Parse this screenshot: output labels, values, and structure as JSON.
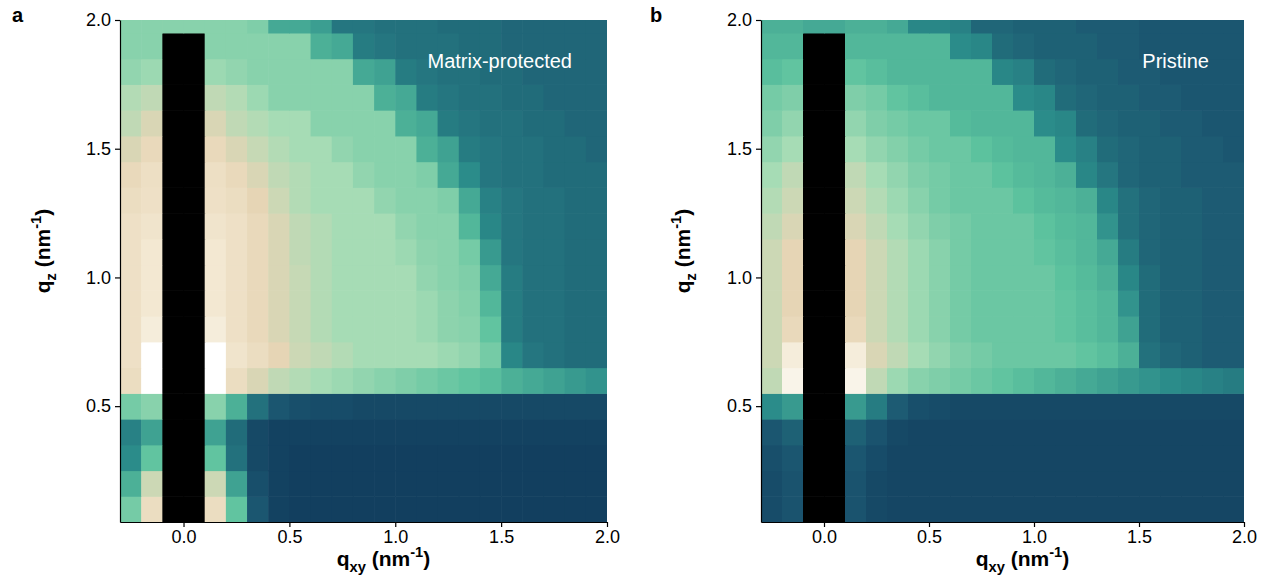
{
  "chart_data": [
    {
      "type": "heatmap",
      "panel": "a",
      "title": "Matrix-protected",
      "x_label": "qxy (nm-1)",
      "y_label": "qz (nm-1)",
      "xlim": [
        -0.3,
        2.0
      ],
      "ylim": [
        0.05,
        2.0
      ],
      "xticks": [
        {
          "value": 0,
          "label": "0.0"
        },
        0.5,
        {
          "value": 1,
          "label": "1.0"
        },
        1.5,
        {
          "value": 2,
          "label": "2.0"
        }
      ],
      "yticks": [
        0.5,
        {
          "value": 1,
          "label": "1.0"
        },
        1.5,
        {
          "value": 2,
          "label": "2.0"
        }
      ],
      "grid": false,
      "zlim": [
        0,
        100
      ],
      "x": [
        -0.25,
        -0.15,
        -0.05,
        0.05,
        0.15,
        0.25,
        0.35,
        0.45,
        0.55,
        0.65,
        0.75,
        0.85,
        0.95,
        1.05,
        1.15,
        1.25,
        1.35,
        1.45,
        1.55,
        1.65,
        1.75,
        1.85,
        1.95
      ],
      "y": [
        0.1,
        0.2,
        0.3,
        0.4,
        0.5,
        0.6,
        0.7,
        0.8,
        0.9,
        1.0,
        1.1,
        1.2,
        1.3,
        1.4,
        1.5,
        1.6,
        1.7,
        1.8,
        1.9,
        2.0
      ],
      "z": [
        [
          60,
          84,
          null,
          null,
          84,
          56,
          20,
          8,
          6,
          6,
          6,
          6,
          6,
          6,
          6,
          6,
          6,
          6,
          6,
          6,
          6,
          6,
          6
        ],
        [
          50,
          76,
          null,
          null,
          76,
          46,
          16,
          8,
          6,
          6,
          6,
          6,
          6,
          6,
          6,
          6,
          6,
          6,
          6,
          6,
          6,
          6,
          6
        ],
        [
          40,
          56,
          null,
          null,
          56,
          30,
          12,
          8,
          6,
          6,
          6,
          6,
          6,
          6,
          6,
          6,
          6,
          6,
          6,
          6,
          6,
          6,
          6
        ],
        [
          36,
          46,
          null,
          null,
          46,
          28,
          12,
          8,
          8,
          8,
          8,
          8,
          8,
          8,
          8,
          8,
          8,
          8,
          8,
          8,
          8,
          8,
          8
        ],
        [
          60,
          64,
          null,
          null,
          64,
          50,
          30,
          20,
          16,
          14,
          14,
          12,
          12,
          12,
          12,
          12,
          12,
          12,
          12,
          12,
          12,
          12,
          12
        ],
        [
          84,
          100,
          null,
          null,
          100,
          84,
          78,
          74,
          72,
          70,
          68,
          66,
          64,
          62,
          60,
          58,
          56,
          54,
          50,
          48,
          46,
          44,
          42
        ],
        [
          86,
          100,
          null,
          null,
          100,
          88,
          84,
          80,
          76,
          74,
          72,
          70,
          70,
          70,
          70,
          68,
          66,
          60,
          38,
          32,
          30,
          28,
          28
        ],
        [
          86,
          92,
          null,
          null,
          92,
          86,
          82,
          78,
          75,
          72,
          70,
          70,
          70,
          70,
          68,
          65,
          64,
          56,
          34,
          30,
          30,
          28,
          28
        ],
        [
          86,
          90,
          null,
          null,
          90,
          86,
          82,
          78,
          75,
          72,
          70,
          70,
          70,
          70,
          68,
          65,
          63,
          52,
          34,
          30,
          30,
          28,
          28
        ],
        [
          86,
          90,
          null,
          null,
          90,
          86,
          82,
          78,
          75,
          72,
          70,
          70,
          70,
          70,
          66,
          64,
          62,
          48,
          34,
          30,
          30,
          28,
          28
        ],
        [
          86,
          90,
          null,
          null,
          90,
          86,
          82,
          78,
          74,
          72,
          70,
          70,
          70,
          68,
          65,
          64,
          60,
          44,
          32,
          30,
          30,
          28,
          28
        ],
        [
          86,
          88,
          null,
          null,
          88,
          86,
          82,
          78,
          74,
          72,
          70,
          70,
          70,
          66,
          64,
          64,
          52,
          38,
          32,
          30,
          30,
          28,
          28
        ],
        [
          84,
          86,
          null,
          null,
          86,
          84,
          80,
          76,
          72,
          70,
          70,
          70,
          66,
          64,
          64,
          62,
          48,
          36,
          32,
          30,
          30,
          28,
          28
        ],
        [
          82,
          85,
          null,
          null,
          85,
          82,
          78,
          74,
          72,
          70,
          70,
          66,
          64,
          64,
          62,
          48,
          40,
          32,
          30,
          30,
          28,
          28,
          28
        ],
        [
          78,
          82,
          null,
          null,
          82,
          78,
          75,
          72,
          70,
          70,
          66,
          64,
          64,
          64,
          50,
          46,
          34,
          32,
          30,
          30,
          28,
          28,
          26
        ],
        [
          74,
          78,
          null,
          null,
          78,
          74,
          72,
          70,
          70,
          64,
          64,
          64,
          64,
          50,
          48,
          34,
          32,
          30,
          30,
          28,
          28,
          26,
          26
        ],
        [
          72,
          74,
          null,
          null,
          74,
          72,
          68,
          64,
          64,
          64,
          64,
          64,
          50,
          48,
          34,
          32,
          30,
          30,
          28,
          28,
          26,
          26,
          26
        ],
        [
          66,
          68,
          null,
          null,
          68,
          66,
          64,
          64,
          64,
          64,
          64,
          48,
          46,
          34,
          32,
          30,
          30,
          28,
          28,
          26,
          26,
          26,
          26
        ],
        [
          64,
          64,
          null,
          null,
          64,
          64,
          64,
          64,
          64,
          50,
          48,
          34,
          32,
          30,
          30,
          30,
          28,
          28,
          26,
          26,
          26,
          26,
          26
        ],
        [
          64,
          64,
          64,
          64,
          64,
          64,
          62,
          48,
          48,
          45,
          32,
          32,
          30,
          30,
          30,
          28,
          28,
          28,
          26,
          26,
          26,
          26,
          26
        ]
      ]
    },
    {
      "type": "heatmap",
      "panel": "b",
      "title": "Pristine",
      "x_label": "qxy (nm-1)",
      "y_label": "qz (nm-1)",
      "xlim": [
        -0.3,
        2.0
      ],
      "ylim": [
        0.05,
        2.0
      ],
      "xticks": [
        {
          "value": 0,
          "label": "0.0"
        },
        0.5,
        {
          "value": 1,
          "label": "1.0"
        },
        1.5,
        {
          "value": 2,
          "label": "2.0"
        }
      ],
      "yticks": [
        0.5,
        {
          "value": 1,
          "label": "1.0"
        },
        1.5,
        {
          "value": 2,
          "label": "2.0"
        }
      ],
      "grid": false,
      "zlim": [
        0,
        100
      ],
      "x": [
        -0.25,
        -0.15,
        -0.05,
        0.05,
        0.15,
        0.25,
        0.35,
        0.45,
        0.55,
        0.65,
        0.75,
        0.85,
        0.95,
        1.05,
        1.15,
        1.25,
        1.35,
        1.45,
        1.55,
        1.65,
        1.75,
        1.85,
        1.95
      ],
      "y": [
        0.1,
        0.2,
        0.3,
        0.4,
        0.5,
        0.6,
        0.7,
        0.8,
        0.9,
        1.0,
        1.1,
        1.2,
        1.3,
        1.4,
        1.5,
        1.6,
        1.7,
        1.8,
        1.9,
        2.0
      ],
      "z": [
        [
          14,
          18,
          null,
          null,
          18,
          12,
          10,
          10,
          10,
          10,
          10,
          10,
          10,
          10,
          10,
          10,
          10,
          10,
          10,
          10,
          10,
          10,
          10
        ],
        [
          14,
          18,
          null,
          null,
          18,
          12,
          10,
          10,
          10,
          10,
          10,
          10,
          10,
          10,
          10,
          10,
          10,
          10,
          10,
          10,
          10,
          10,
          10
        ],
        [
          16,
          20,
          null,
          null,
          20,
          14,
          10,
          10,
          10,
          10,
          10,
          10,
          10,
          10,
          10,
          10,
          10,
          10,
          10,
          10,
          10,
          10,
          10
        ],
        [
          20,
          24,
          null,
          null,
          24,
          18,
          12,
          10,
          10,
          10,
          10,
          10,
          10,
          10,
          10,
          10,
          10,
          10,
          10,
          10,
          10,
          10,
          10
        ],
        [
          40,
          44,
          null,
          null,
          44,
          34,
          22,
          16,
          14,
          12,
          12,
          12,
          12,
          12,
          12,
          12,
          12,
          12,
          12,
          12,
          12,
          12,
          12
        ],
        [
          74,
          95,
          null,
          null,
          95,
          74,
          68,
          64,
          62,
          60,
          58,
          56,
          54,
          52,
          50,
          48,
          46,
          44,
          42,
          40,
          38,
          36,
          34
        ],
        [
          76,
          92,
          null,
          null,
          92,
          78,
          74,
          70,
          66,
          62,
          60,
          58,
          58,
          58,
          58,
          56,
          54,
          50,
          30,
          26,
          24,
          22,
          22
        ],
        [
          76,
          82,
          null,
          null,
          82,
          76,
          72,
          68,
          64,
          60,
          58,
          58,
          58,
          58,
          56,
          54,
          52,
          46,
          28,
          24,
          24,
          22,
          22
        ],
        [
          76,
          80,
          null,
          null,
          80,
          76,
          72,
          68,
          64,
          60,
          58,
          58,
          58,
          58,
          56,
          54,
          52,
          42,
          28,
          24,
          24,
          22,
          22
        ],
        [
          76,
          80,
          null,
          null,
          80,
          76,
          72,
          68,
          64,
          60,
          58,
          58,
          58,
          58,
          55,
          53,
          50,
          38,
          28,
          24,
          24,
          22,
          22
        ],
        [
          76,
          80,
          null,
          null,
          80,
          76,
          72,
          68,
          64,
          60,
          58,
          58,
          58,
          56,
          54,
          52,
          48,
          34,
          26,
          24,
          24,
          22,
          22
        ],
        [
          74,
          78,
          null,
          null,
          78,
          74,
          70,
          66,
          62,
          60,
          58,
          58,
          58,
          55,
          53,
          52,
          42,
          30,
          26,
          24,
          24,
          22,
          22
        ],
        [
          72,
          76,
          null,
          null,
          76,
          72,
          68,
          64,
          60,
          58,
          58,
          58,
          55,
          53,
          52,
          50,
          38,
          30,
          26,
          24,
          24,
          22,
          22
        ],
        [
          70,
          74,
          null,
          null,
          74,
          70,
          66,
          62,
          60,
          58,
          58,
          55,
          53,
          52,
          50,
          38,
          32,
          26,
          24,
          24,
          22,
          22,
          22
        ],
        [
          66,
          70,
          null,
          null,
          70,
          66,
          63,
          60,
          58,
          58,
          55,
          53,
          52,
          52,
          40,
          36,
          28,
          26,
          24,
          24,
          22,
          22,
          20
        ],
        [
          62,
          66,
          null,
          null,
          66,
          62,
          60,
          58,
          58,
          53,
          52,
          52,
          52,
          40,
          38,
          28,
          26,
          24,
          24,
          22,
          22,
          20,
          20
        ],
        [
          60,
          62,
          null,
          null,
          62,
          60,
          56,
          54,
          52,
          52,
          52,
          52,
          40,
          38,
          28,
          26,
          24,
          24,
          22,
          22,
          20,
          20,
          20
        ],
        [
          54,
          56,
          null,
          null,
          56,
          54,
          52,
          52,
          52,
          52,
          52,
          38,
          36,
          28,
          26,
          24,
          24,
          22,
          22,
          20,
          20,
          20,
          20
        ],
        [
          52,
          52,
          null,
          null,
          52,
          52,
          52,
          52,
          52,
          40,
          38,
          28,
          26,
          24,
          24,
          24,
          22,
          22,
          20,
          20,
          20,
          20,
          20
        ],
        [
          50,
          50,
          48,
          48,
          50,
          50,
          48,
          38,
          38,
          36,
          26,
          26,
          24,
          24,
          24,
          22,
          22,
          22,
          20,
          20,
          20,
          20,
          20
        ]
      ]
    }
  ]
}
